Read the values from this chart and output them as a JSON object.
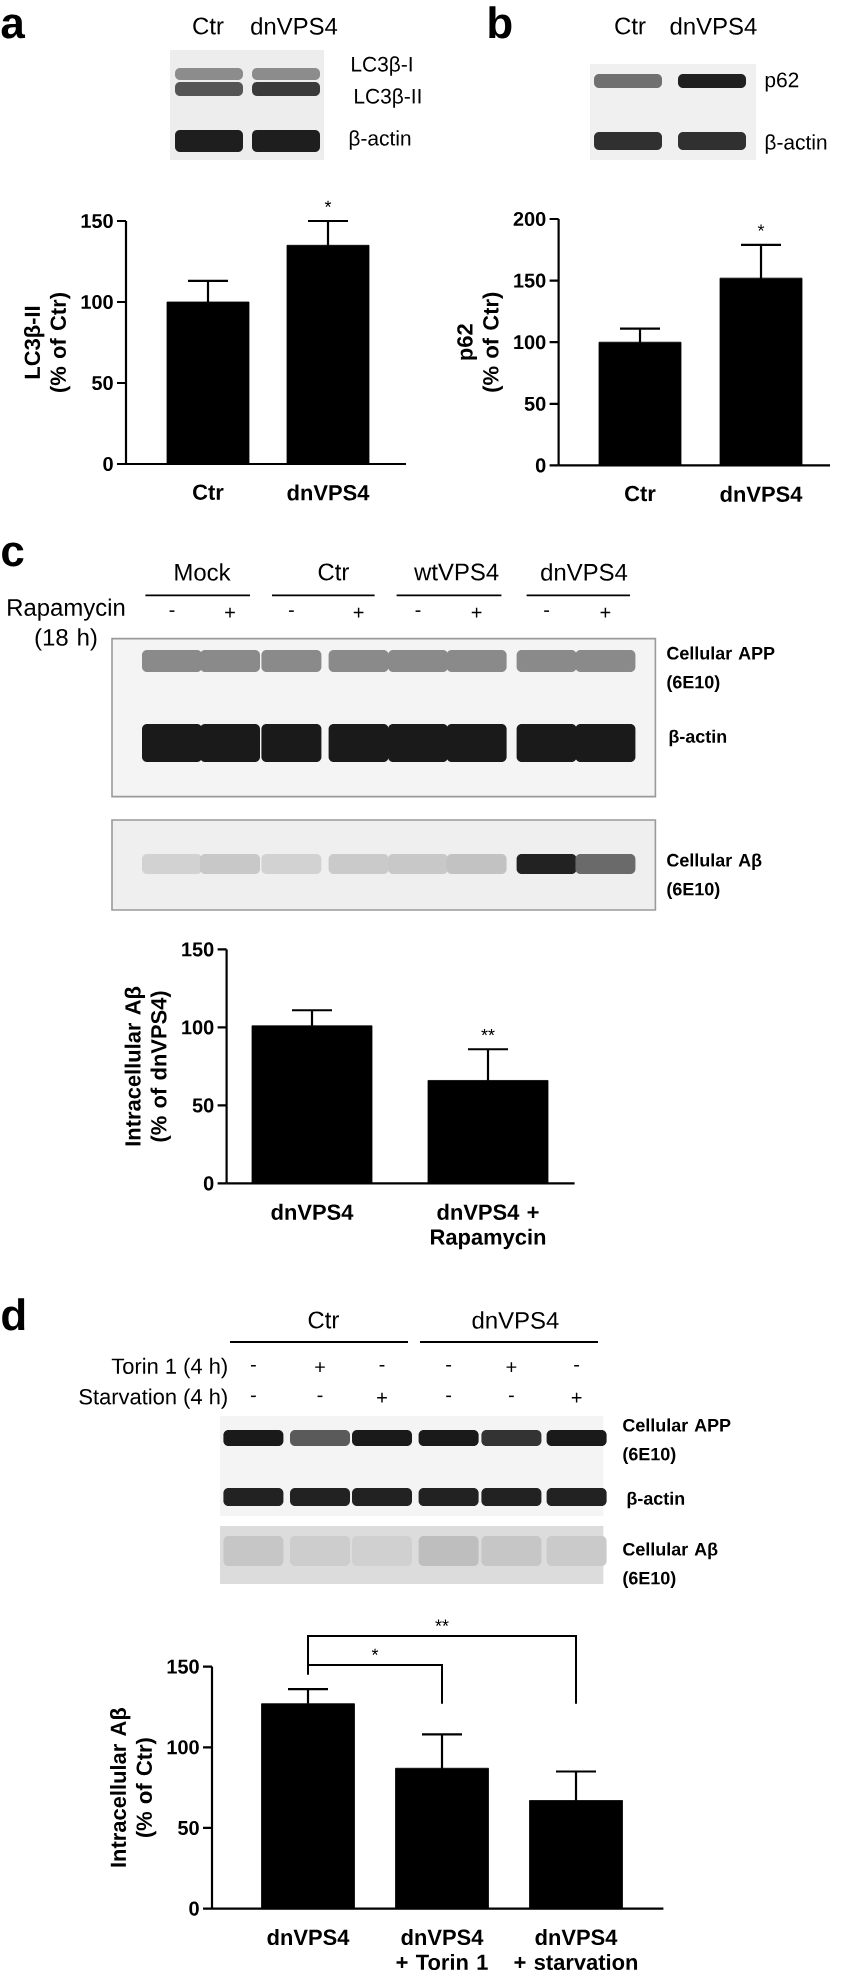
{
  "chart_data": [
    {
      "type": "bar",
      "title": "a",
      "categories": [
        "Ctr",
        "dnVPS4"
      ],
      "values": [
        100,
        135
      ],
      "errors": [
        13,
        15
      ],
      "color": "#000000",
      "ylabel": "LC3β-II\n(% of Ctr)",
      "ylim": [
        0,
        150
      ],
      "yticks": [
        0,
        50,
        100,
        150
      ],
      "annotations": [
        "Ctr",
        "dnVPS4",
        "LC3β-I",
        "LC3β-II",
        "β-actin",
        "*"
      ]
    },
    {
      "type": "bar",
      "title": "b",
      "categories": [
        "Ctr",
        "dnVPS4"
      ],
      "values": [
        100,
        152
      ],
      "errors": [
        11,
        27
      ],
      "color": "#000000",
      "ylabel": "p62\n(% of Ctr)",
      "ylim": [
        0,
        200
      ],
      "yticks": [
        0,
        50,
        100,
        150,
        200
      ],
      "annotations": [
        "Ctr",
        "dnVPS4",
        "p62",
        "β-actin",
        "*"
      ]
    },
    {
      "type": "bar",
      "title": "c",
      "categories": [
        "dnVPS4",
        "dnVPS4 +\nRapamycin"
      ],
      "values": [
        101,
        66
      ],
      "errors": [
        10,
        20
      ],
      "color": "#000000",
      "ylabel": "Intracellular Aβ\n(% of dnVPS4)",
      "ylim": [
        0,
        150
      ],
      "yticks": [
        0,
        50,
        100,
        150
      ],
      "annotations": [
        "Mock",
        "Ctr",
        "wtVPS4",
        "dnVPS4",
        "Rapamycin\n(18 h)",
        "-",
        "+",
        "-",
        "+",
        "-",
        "+",
        "-",
        "+",
        "Cellular APP\n(6E10)",
        "β-actin",
        "Cellular Aβ\n(6E10)",
        "**"
      ]
    },
    {
      "type": "bar",
      "title": "d",
      "categories": [
        "dnVPS4",
        "dnVPS4\n+ Torin 1",
        "dnVPS4\n+ starvation"
      ],
      "values": [
        127,
        87,
        67
      ],
      "errors": [
        9,
        21,
        18
      ],
      "color": "#000000",
      "ylabel": "Intracellular Aβ\n(% of Ctr)",
      "ylim": [
        0,
        150
      ],
      "yticks": [
        0,
        50,
        100,
        150
      ],
      "annotations": [
        "Ctr",
        "dnVPS4",
        "Torin 1 (4 h)",
        "Starvation (4 h)",
        "-",
        "+",
        "-",
        "-",
        "+",
        "-",
        "-",
        "-",
        "+",
        "-",
        "-",
        "+",
        "Cellular APP\n(6E10)",
        "β-actin",
        "Cellular Aβ\n(6E10)",
        "*",
        "**"
      ]
    }
  ]
}
